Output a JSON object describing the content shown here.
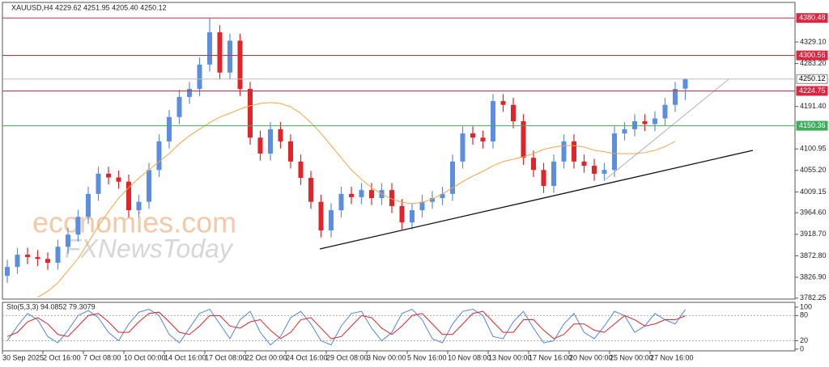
{
  "chart_data": [
    {
      "type": "candlestick",
      "title": "XAUUSD,H4  4229.62 4251.95 4205.40 4250.12",
      "watermarks": [
        "economies.com",
        "FXNewsToday"
      ],
      "categories": [
        "30 Sep 2025",
        null,
        null,
        null,
        "2 Oct 16:00",
        null,
        null,
        null,
        "7 Oct 08:00",
        null,
        null,
        null,
        "10 Oct 00:00",
        null,
        null,
        null,
        "14 Oct 16:00",
        null,
        null,
        null,
        "17 Oct 08:00",
        null,
        null,
        null,
        "22 Oct 00:00",
        null,
        null,
        null,
        "24 Oct 16:00",
        null,
        null,
        null,
        "29 Oct 08:00",
        null,
        null,
        null,
        "3 Nov 00:00",
        null,
        null,
        null,
        "5 Nov 16:00",
        null,
        null,
        null,
        "10 Nov 08:00",
        null,
        null,
        null,
        "13 Nov 00:00",
        null,
        null,
        null,
        "17 Nov 16:00",
        null,
        null,
        null,
        "20 Nov 00:00",
        null,
        null,
        null,
        "25 Nov 00:00",
        null,
        null,
        null,
        "27 Nov 16:00",
        null,
        null,
        null
      ],
      "open": [
        3830,
        3849,
        3875,
        3870,
        3866,
        3858,
        3892,
        3918,
        3956,
        4005,
        4048,
        4040,
        4031,
        3970,
        3988,
        4056,
        4117,
        4169,
        4212,
        4229,
        4281,
        4350,
        4264,
        4332,
        4229,
        4125,
        4091,
        4143,
        4117,
        4074,
        4039,
        3988,
        3927,
        3970,
        4005,
        3998,
        4013,
        3996,
        4013,
        3979,
        3944,
        3970,
        3988,
        3996,
        4005,
        4074,
        4134,
        4125,
        4117,
        4203,
        4195,
        4160,
        4082,
        4056,
        4022,
        4074,
        4117,
        4074,
        4065,
        4048,
        4056,
        4134,
        4143,
        4160,
        4154,
        4166,
        4195,
        4229.62
      ],
      "high": [
        3864,
        3890,
        3890,
        3885,
        3880,
        3907,
        3933,
        3971,
        4020,
        4063,
        4063,
        4055,
        4046,
        4003,
        4071,
        4132,
        4184,
        4227,
        4244,
        4296,
        4380,
        4365,
        4347,
        4347,
        4244,
        4140,
        4158,
        4158,
        4132,
        4089,
        4054,
        4003,
        3985,
        4020,
        4020,
        4028,
        4028,
        4028,
        4028,
        3994,
        3985,
        4003,
        4011,
        4020,
        4089,
        4149,
        4149,
        4140,
        4218,
        4218,
        4210,
        4175,
        4097,
        4071,
        4089,
        4132,
        4132,
        4089,
        4080,
        4071,
        4149,
        4158,
        4175,
        4175,
        4181,
        4210,
        4244,
        4251.95
      ],
      "low": [
        3815,
        3834,
        3855,
        3851,
        3843,
        3843,
        3877,
        3903,
        3941,
        3990,
        4025,
        4016,
        3955,
        3955,
        3973,
        4041,
        4102,
        4154,
        4197,
        4214,
        4266,
        4249,
        4249,
        4214,
        4110,
        4076,
        4076,
        4102,
        4059,
        4024,
        3973,
        3912,
        3912,
        3955,
        3983,
        3983,
        3981,
        3981,
        3964,
        3929,
        3929,
        3955,
        3973,
        3981,
        3990,
        4059,
        4110,
        4102,
        4102,
        4180,
        4145,
        4067,
        4041,
        4007,
        4007,
        4059,
        4059,
        4050,
        4033,
        4033,
        4041,
        4119,
        4128,
        4139,
        4139,
        4151,
        4180,
        4205.4
      ],
      "close": [
        3849,
        3875,
        3870,
        3866,
        3858,
        3892,
        3918,
        3956,
        4005,
        4048,
        4040,
        4031,
        3970,
        3988,
        4056,
        4117,
        4169,
        4212,
        4229,
        4281,
        4350,
        4264,
        4332,
        4229,
        4125,
        4091,
        4143,
        4117,
        4074,
        4039,
        3988,
        3927,
        3970,
        4005,
        3998,
        4013,
        3996,
        4013,
        3979,
        3944,
        3970,
        3988,
        3996,
        4005,
        4074,
        4134,
        4125,
        4117,
        4203,
        4195,
        4160,
        4082,
        4056,
        4022,
        4074,
        4117,
        4074,
        4065,
        4048,
        4056,
        4134,
        4143,
        4160,
        4154,
        4166,
        4195,
        4229,
        4250.12
      ],
      "up_color": "#5b8de0",
      "down_color": "#e2232a",
      "ma": {
        "color": "#f4a640",
        "values": [
          null,
          null,
          null,
          3784,
          3797,
          3815,
          3841,
          3867,
          3901,
          3936,
          3967,
          3996,
          4018,
          4039,
          4056,
          4074,
          4091,
          4112,
          4129,
          4143,
          4157,
          4169,
          4177,
          4186,
          4193,
          4198,
          4200,
          4198,
          4191,
          4177,
          4157,
          4134,
          4108,
          4082,
          4056,
          4036,
          4018,
          4005,
          3994,
          3987,
          3984,
          3987,
          3994,
          4005,
          4018,
          4031,
          4043,
          4053,
          4065,
          4074,
          4079,
          4084,
          4091,
          4100,
          4105,
          4108,
          4108,
          4105,
          4098,
          4095,
          4091,
          4091,
          4091,
          4093,
          4098,
          4106,
          4117,
          null
        ]
      },
      "ylim": [
        3780.3,
        4413.7
      ],
      "yticks": [
        {
          "value": 4329.1,
          "label": "4329.10"
        },
        {
          "value": 4283.2,
          "label": "4283.20"
        },
        {
          "value": 4191.4,
          "label": "4191.40"
        },
        {
          "value": 4100.95,
          "label": "4100.95"
        },
        {
          "value": 4055.2,
          "label": "4055.20"
        },
        {
          "value": 4009.15,
          "label": "4009.15"
        },
        {
          "value": 3964.6,
          "label": "3964.60"
        },
        {
          "value": 3918.7,
          "label": "3918.70"
        },
        {
          "value": 3872.8,
          "label": "3872.80"
        },
        {
          "value": 3826.9,
          "label": "3826.90"
        },
        3782.25
      ],
      "levels": [
        {
          "value": 4380.48,
          "color": "#dc2640"
        },
        {
          "value": 4300.56,
          "color": "#dc2640"
        },
        {
          "value": 4250.12,
          "color": "#bdbdbd"
        },
        {
          "value": 4224.75,
          "color": "#dc2640"
        },
        {
          "value": 4150.36,
          "color": "#3cae5c"
        }
      ]
    },
    {
      "type": "line",
      "title": "Sto(5,3,3) 94.0852 79.3079",
      "series": [
        {
          "color": "#4f86d9",
          "values": [
            20,
            55,
            85,
            70,
            30,
            15,
            45,
            80,
            92,
            75,
            40,
            20,
            60,
            88,
            95,
            80,
            35,
            15,
            50,
            85,
            95,
            60,
            25,
            70,
            90,
            40,
            10,
            30,
            75,
            90,
            60,
            20,
            10,
            55,
            85,
            90,
            50,
            20,
            40,
            85,
            95,
            70,
            25,
            15,
            60,
            90,
            95,
            80,
            30,
            25,
            65,
            90,
            50,
            15,
            20,
            60,
            85,
            40,
            25,
            55,
            90,
            80,
            40,
            55,
            85,
            70,
            60,
            94.0852
          ]
        },
        {
          "color": "#e2232a",
          "values": [
            30,
            40,
            65,
            75,
            60,
            35,
            30,
            55,
            80,
            85,
            65,
            40,
            40,
            65,
            85,
            88,
            65,
            40,
            35,
            55,
            80,
            80,
            55,
            50,
            65,
            70,
            45,
            25,
            40,
            70,
            75,
            50,
            25,
            30,
            55,
            80,
            75,
            50,
            35,
            55,
            80,
            85,
            60,
            35,
            35,
            60,
            85,
            90,
            65,
            40,
            40,
            70,
            70,
            45,
            25,
            35,
            60,
            60,
            45,
            40,
            60,
            80,
            70,
            55,
            60,
            70,
            70,
            79.3079
          ]
        }
      ],
      "ylim": [
        -4,
        111.5
      ],
      "yticks": [
        100,
        80,
        20,
        0
      ]
    }
  ]
}
